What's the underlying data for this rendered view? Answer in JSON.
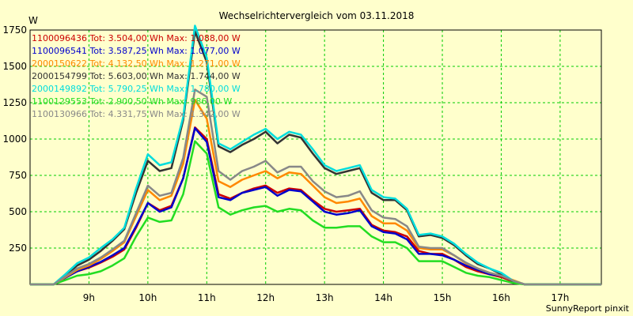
{
  "chart_data": {
    "type": "line",
    "title": "Wechselrichtervergleich vom 03.11.2018",
    "ylabel": "W",
    "footer": "SunnyReport pinxit",
    "xlim": [
      8.0,
      17.7
    ],
    "ylim": [
      0,
      1750
    ],
    "yticks": [
      250,
      500,
      750,
      1000,
      1250,
      1500,
      1750
    ],
    "xticks": [
      9,
      10,
      11,
      12,
      13,
      14,
      15,
      16,
      17
    ],
    "xtick_labels": [
      "9h",
      "10h",
      "11h",
      "12h",
      "13h",
      "14h",
      "15h",
      "16h",
      "17h"
    ],
    "grid": true,
    "x": [
      8.2,
      8.4,
      8.6,
      8.8,
      9.0,
      9.2,
      9.4,
      9.6,
      9.8,
      10.0,
      10.2,
      10.4,
      10.6,
      10.8,
      11.0,
      11.2,
      11.4,
      11.6,
      11.8,
      12.0,
      12.2,
      12.4,
      12.6,
      12.8,
      13.0,
      13.2,
      13.4,
      13.6,
      13.8,
      14.0,
      14.2,
      14.4,
      14.6,
      14.8,
      15.0,
      15.2,
      15.4,
      15.6,
      15.8,
      16.0,
      16.2,
      16.4,
      16.6,
      16.8,
      17.0,
      17.2,
      17.4,
      17.6
    ],
    "series": [
      {
        "name": "1100096436 Tot: 3.504,00 Wh Max: 1.088,00 W",
        "color": "#cc0000",
        "values": [
          0,
          0,
          50,
          90,
          115,
          150,
          190,
          240,
          390,
          560,
          510,
          540,
          730,
          1080,
          1000,
          620,
          590,
          630,
          660,
          680,
          630,
          660,
          650,
          580,
          520,
          500,
          510,
          520,
          410,
          370,
          360,
          330,
          230,
          210,
          210,
          170,
          120,
          90,
          70,
          50,
          20,
          0,
          0,
          0,
          0,
          0,
          0,
          0
        ]
      },
      {
        "name": "1100096541 Tot: 3.587,25 Wh Max: 1.077,00 W",
        "color": "#0000cc",
        "values": [
          0,
          0,
          45,
          90,
          120,
          155,
          200,
          250,
          400,
          560,
          500,
          530,
          730,
          1075,
          980,
          600,
          580,
          630,
          650,
          670,
          610,
          650,
          640,
          570,
          500,
          480,
          490,
          510,
          400,
          360,
          350,
          310,
          210,
          210,
          200,
          170,
          130,
          100,
          70,
          60,
          25,
          0,
          0,
          0,
          0,
          0,
          0,
          0
        ]
      },
      {
        "name": "2000150622 Tot: 4.132,50 Wh Max: 1.271,00 W",
        "color": "#ff8800",
        "values": [
          0,
          0,
          50,
          100,
          130,
          175,
          230,
          290,
          470,
          650,
          580,
          610,
          830,
          1270,
          1140,
          710,
          670,
          720,
          750,
          780,
          730,
          770,
          760,
          680,
          600,
          560,
          570,
          590,
          470,
          420,
          420,
          370,
          250,
          240,
          240,
          200,
          145,
          110,
          80,
          60,
          30,
          0,
          0,
          0,
          0,
          0,
          0,
          0
        ]
      },
      {
        "name": "2000154799 Tot: 5.603,00 Wh Max: 1.744,00 W",
        "color": "#333333",
        "values": [
          0,
          0,
          60,
          130,
          170,
          230,
          300,
          380,
          630,
          850,
          780,
          800,
          1130,
          1740,
          1530,
          950,
          910,
          960,
          1000,
          1050,
          970,
          1030,
          1010,
          900,
          800,
          760,
          780,
          800,
          630,
          580,
          580,
          510,
          330,
          340,
          320,
          270,
          200,
          140,
          110,
          70,
          20,
          0,
          0,
          0,
          0,
          0,
          0,
          0
        ]
      },
      {
        "name": "2000149892 Tot: 5.790,25 Wh Max: 1.780,00 W",
        "color": "#00dddd",
        "values": [
          0,
          0,
          70,
          145,
          185,
          250,
          310,
          390,
          660,
          895,
          820,
          840,
          1150,
          1780,
          1560,
          970,
          930,
          980,
          1030,
          1070,
          1000,
          1050,
          1030,
          930,
          820,
          780,
          800,
          820,
          650,
          600,
          590,
          520,
          340,
          350,
          330,
          280,
          210,
          150,
          110,
          80,
          25,
          0,
          0,
          0,
          0,
          0,
          0,
          0
        ]
      },
      {
        "name": "1100129553 Tot: 2.900,50 Wh Max: 986,00 W",
        "color": "#22dd22",
        "values": [
          0,
          0,
          30,
          60,
          70,
          90,
          130,
          180,
          330,
          460,
          430,
          440,
          620,
          985,
          900,
          530,
          480,
          510,
          530,
          540,
          500,
          520,
          510,
          440,
          390,
          390,
          400,
          400,
          330,
          290,
          290,
          250,
          160,
          160,
          160,
          120,
          80,
          60,
          50,
          30,
          10,
          0,
          0,
          0,
          0,
          0,
          0,
          0
        ]
      },
      {
        "name": "1100130966 Tot: 4.331,75 Wh Max: 1.342,00 W",
        "color": "#888888",
        "values": [
          0,
          0,
          55,
          110,
          140,
          185,
          240,
          300,
          490,
          680,
          610,
          630,
          870,
          1340,
          1290,
          780,
          720,
          780,
          810,
          850,
          770,
          810,
          810,
          710,
          640,
          600,
          610,
          640,
          510,
          460,
          450,
          400,
          260,
          250,
          250,
          200,
          150,
          110,
          80,
          60,
          25,
          0,
          0,
          0,
          0,
          0,
          0,
          0
        ]
      }
    ]
  }
}
